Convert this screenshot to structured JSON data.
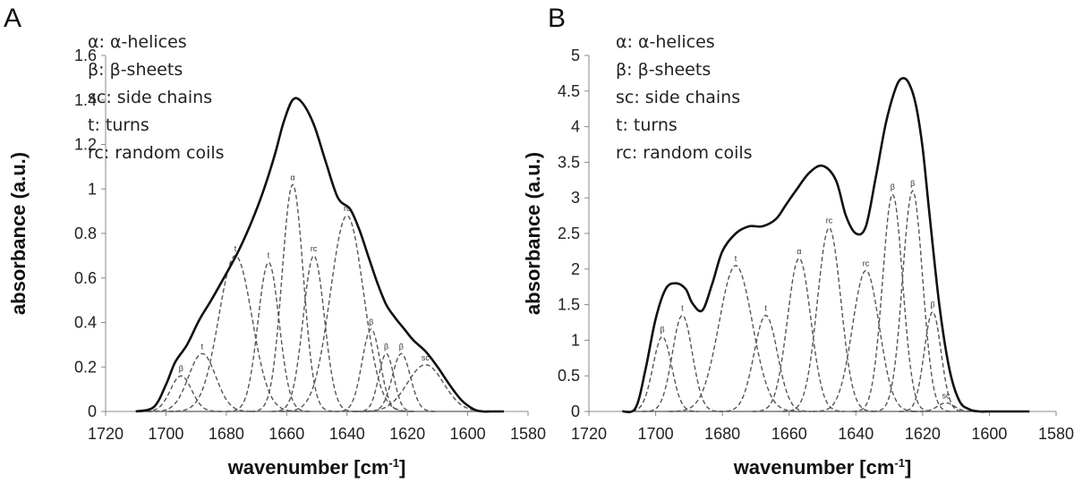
{
  "colors": {
    "envelope": "#111111",
    "component": "#555555",
    "axis": "#888888",
    "text": "#222222"
  },
  "chart_data": [
    {
      "type": "line",
      "panel": "A",
      "xlabel": "wavenumber [cm",
      "xlabel_sup": "-1",
      "xlabel_end": "]",
      "ylabel": "absorbance (a.u.)",
      "xlim": [
        1720,
        1580
      ],
      "ylim": [
        0,
        1.6
      ],
      "xticks": [
        1720,
        1700,
        1680,
        1660,
        1640,
        1620,
        1600,
        1580
      ],
      "yticks": [
        "0",
        "0.2",
        "0.4",
        "0.6",
        "0.8",
        "1",
        "1.2",
        "1.4",
        "1.6"
      ],
      "ytick_values": [
        0,
        0.2,
        0.4,
        0.6,
        0.8,
        1,
        1.2,
        1.4,
        1.6
      ],
      "legend": [
        "α: α-helices",
        "β: β-sheets",
        "sc: side chains",
        "t: turns",
        "rc: random coils"
      ],
      "baseline": [
        1710,
        1588
      ],
      "envelope": {
        "x": [
          1710,
          1704,
          1700,
          1697,
          1693,
          1689,
          1685,
          1680,
          1676,
          1672,
          1668,
          1664,
          1661,
          1658,
          1655,
          1651,
          1647,
          1643,
          1639,
          1636,
          1633,
          1630,
          1627,
          1624,
          1621,
          1618,
          1614,
          1610,
          1606,
          1602,
          1598,
          1595,
          1592,
          1588
        ],
        "y": [
          0.0,
          0.02,
          0.12,
          0.22,
          0.3,
          0.41,
          0.5,
          0.62,
          0.72,
          0.84,
          0.98,
          1.15,
          1.3,
          1.4,
          1.39,
          1.29,
          1.12,
          0.96,
          0.91,
          0.82,
          0.7,
          0.58,
          0.48,
          0.42,
          0.37,
          0.32,
          0.27,
          0.2,
          0.12,
          0.05,
          0.01,
          0.0,
          0.0,
          0.0
        ]
      },
      "series": [
        {
          "name": "β",
          "center": 1695,
          "height": 0.16,
          "width": 3.5
        },
        {
          "name": "t",
          "center": 1688,
          "height": 0.26,
          "width": 4.5
        },
        {
          "name": "t",
          "center": 1677,
          "height": 0.7,
          "width": 5.5
        },
        {
          "name": "t",
          "center": 1666,
          "height": 0.67,
          "width": 3.5
        },
        {
          "name": "α",
          "center": 1658,
          "height": 1.02,
          "width": 3.5
        },
        {
          "name": "rc",
          "center": 1651,
          "height": 0.7,
          "width": 3.5
        },
        {
          "name": "rc",
          "center": 1640,
          "height": 0.88,
          "width": 5.5
        },
        {
          "name": "β",
          "center": 1632,
          "height": 0.37,
          "width": 3.0
        },
        {
          "name": "β",
          "center": 1627,
          "height": 0.26,
          "width": 2.5
        },
        {
          "name": "β",
          "center": 1622,
          "height": 0.26,
          "width": 3.0
        },
        {
          "name": "sc",
          "center": 1614,
          "height": 0.21,
          "width": 6.0
        }
      ]
    },
    {
      "type": "line",
      "panel": "B",
      "xlabel": "wavenumber [cm",
      "xlabel_sup": "-1",
      "xlabel_end": "]",
      "ylabel": "absorbance (a.u.)",
      "xlim": [
        1720,
        1580
      ],
      "ylim": [
        0,
        5
      ],
      "xticks": [
        1720,
        1700,
        1680,
        1660,
        1640,
        1620,
        1600,
        1580
      ],
      "yticks": [
        "0",
        "0.5",
        "1",
        "1.5",
        "2",
        "2.5",
        "3",
        "3.5",
        "4",
        "4.5",
        "5"
      ],
      "ytick_values": [
        0,
        0.5,
        1,
        1.5,
        2,
        2.5,
        3,
        3.5,
        4,
        4.5,
        5
      ],
      "legend": [
        "α: α-helices",
        "β: β-sheets",
        "sc: side chains",
        "t: turns",
        "rc: random coils"
      ],
      "baseline": [
        1710,
        1588
      ],
      "envelope": {
        "x": [
          1710,
          1706,
          1703,
          1700,
          1697,
          1694,
          1691,
          1689,
          1686,
          1683,
          1680,
          1676,
          1672,
          1668,
          1664,
          1661,
          1658,
          1654,
          1650,
          1646,
          1643,
          1640,
          1637,
          1634,
          1631,
          1628,
          1626,
          1624,
          1622,
          1620,
          1618,
          1615,
          1612,
          1609,
          1606,
          1603,
          1600,
          1596,
          1592,
          1588
        ],
        "y": [
          0.0,
          0.05,
          0.6,
          1.3,
          1.72,
          1.8,
          1.72,
          1.52,
          1.42,
          1.8,
          2.25,
          2.5,
          2.6,
          2.6,
          2.7,
          2.9,
          3.1,
          3.35,
          3.45,
          3.25,
          2.75,
          2.5,
          2.6,
          3.3,
          4.05,
          4.55,
          4.68,
          4.6,
          4.3,
          3.7,
          2.8,
          1.5,
          0.6,
          0.15,
          0.03,
          0.0,
          0.0,
          0.0,
          0.0,
          0.0
        ]
      },
      "series": [
        {
          "name": "β",
          "center": 1698,
          "height": 1.05,
          "width": 2.8
        },
        {
          "name": "t",
          "center": 1692,
          "height": 1.35,
          "width": 3.0
        },
        {
          "name": "t",
          "center": 1676,
          "height": 2.05,
          "width": 5.0
        },
        {
          "name": "t",
          "center": 1667,
          "height": 1.35,
          "width": 3.5
        },
        {
          "name": "α",
          "center": 1657,
          "height": 2.15,
          "width": 3.5
        },
        {
          "name": "rc",
          "center": 1648,
          "height": 2.58,
          "width": 3.5
        },
        {
          "name": "rc",
          "center": 1637,
          "height": 1.98,
          "width": 4.0
        },
        {
          "name": "β",
          "center": 1629,
          "height": 3.05,
          "width": 3.0
        },
        {
          "name": "β",
          "center": 1623,
          "height": 3.1,
          "width": 3.0
        },
        {
          "name": "β",
          "center": 1617,
          "height": 1.4,
          "width": 2.5
        },
        {
          "name": "sc",
          "center": 1613,
          "height": 0.12,
          "width": 2.5
        }
      ]
    }
  ]
}
